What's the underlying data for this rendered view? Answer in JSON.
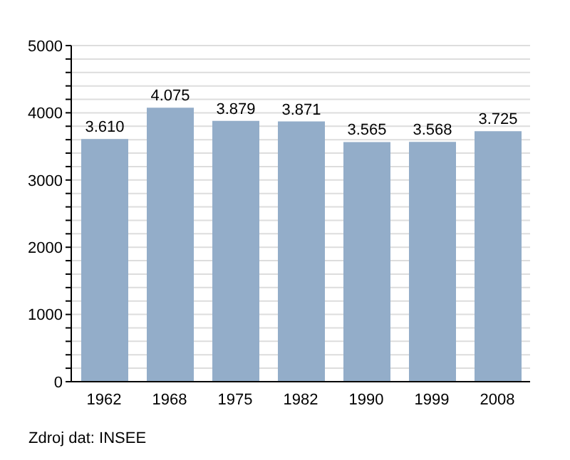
{
  "chart_data": {
    "type": "bar",
    "categories": [
      "1962",
      "1968",
      "1975",
      "1982",
      "1990",
      "1999",
      "2008"
    ],
    "values": [
      3610,
      4075,
      3879,
      3871,
      3565,
      3568,
      3725
    ],
    "value_labels": [
      "3.610",
      "4.075",
      "3.879",
      "3.871",
      "3.565",
      "3.568",
      "3.725"
    ],
    "color": "#93adc9",
    "ylim": [
      0,
      5000
    ],
    "yticks": [
      0,
      {
        "value": 200,
        "label": null
      },
      {
        "value": 400,
        "label": null
      },
      {
        "value": 600,
        "label": null
      },
      {
        "value": 800,
        "label": null
      },
      1000,
      {
        "value": 1200,
        "label": null
      },
      {
        "value": 1400,
        "label": null
      },
      {
        "value": 1600,
        "label": null
      },
      {
        "value": 1800,
        "label": null
      },
      2000,
      {
        "value": 2200,
        "label": null
      },
      {
        "value": 2400,
        "label": null
      },
      {
        "value": 2600,
        "label": null
      },
      {
        "value": 2800,
        "label": null
      },
      3000,
      {
        "value": 3200,
        "label": null
      },
      {
        "value": 3400,
        "label": null
      },
      {
        "value": 3600,
        "label": null
      },
      {
        "value": 3800,
        "label": null
      },
      4000,
      {
        "value": 4200,
        "label": null
      },
      {
        "value": 4400,
        "label": null
      },
      {
        "value": 4600,
        "label": null
      },
      {
        "value": 4800,
        "label": null
      },
      5000
    ],
    "grid": "y",
    "annotations": [
      "Zdroj dat: INSEE"
    ]
  }
}
